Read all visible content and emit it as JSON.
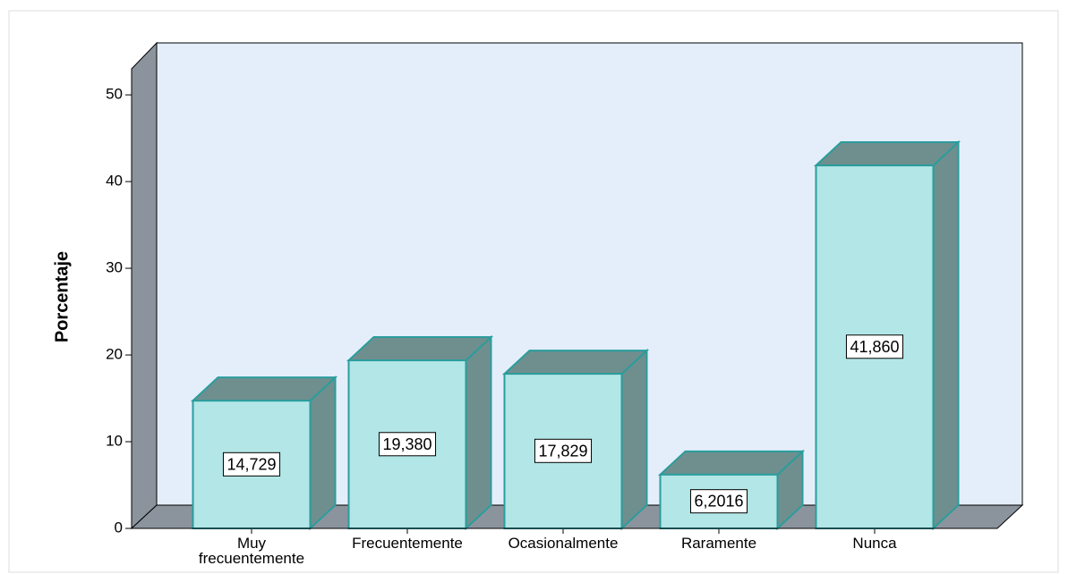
{
  "chart_data": {
    "type": "bar3d",
    "y_label": "Porcentaje",
    "categories": [
      "Muy frecuentemente",
      "Frecuentemente",
      "Ocasionalmente",
      "Raramente",
      "Nunca"
    ],
    "values": [
      14.729,
      19.38,
      17.829,
      6.2016,
      41.86
    ],
    "value_labels": [
      "14,729",
      "19,380",
      "17,829",
      "6,2016",
      "41,860"
    ],
    "color": "#b3e6e6",
    "ylim": [
      0,
      53
    ],
    "yticks": [
      0,
      10,
      20,
      30,
      40,
      50
    ]
  }
}
